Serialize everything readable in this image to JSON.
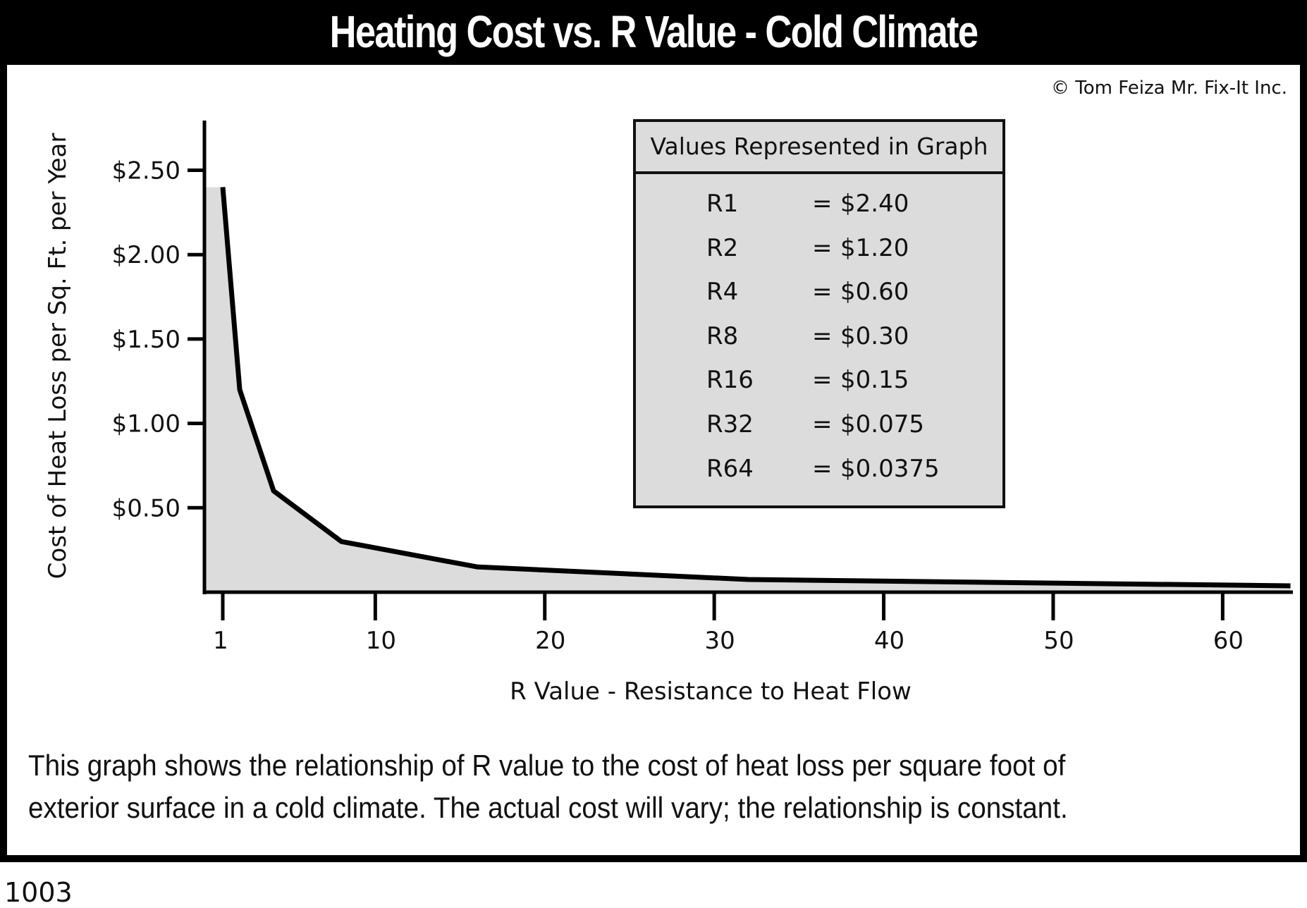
{
  "title": "Heating Cost vs. R Value - Cold Climate",
  "copyright": "© Tom Feiza Mr. Fix-It Inc.",
  "caption_lines": [
    "This graph shows the relationship of R value to the cost of heat loss per square foot of",
    "exterior surface in a cold climate.  The actual cost will vary; the relationship is constant."
  ],
  "figure_number": "1003",
  "legend": {
    "title": "Values Represented in Graph",
    "rows": [
      {
        "r": "R1",
        "eq": "=",
        "v": "$2.40"
      },
      {
        "r": "R2",
        "eq": "=",
        "v": "$1.20"
      },
      {
        "r": "R4",
        "eq": "=",
        "v": "$0.60"
      },
      {
        "r": "R8",
        "eq": "=",
        "v": "$0.30"
      },
      {
        "r": "R16",
        "eq": "=",
        "v": "$0.15"
      },
      {
        "r": "R32",
        "eq": "=",
        "v": "$0.075"
      },
      {
        "r": "R64",
        "eq": "=",
        "v": "$0.0375"
      }
    ]
  },
  "chart_data": {
    "type": "area",
    "title": "Heating Cost vs. R Value - Cold Climate",
    "xlabel": "R Value - Resistance to Heat Flow",
    "ylabel": "Cost of Heat Loss per Sq. Ft. per Year",
    "x": [
      1,
      2,
      4,
      8,
      16,
      32,
      64
    ],
    "y": [
      2.4,
      1.2,
      0.6,
      0.3,
      0.15,
      0.075,
      0.0375
    ],
    "xticks": [
      1,
      10,
      20,
      30,
      40,
      50,
      60
    ],
    "xtick_labels": [
      "1",
      "10",
      "20",
      "30",
      "40",
      "50",
      "60"
    ],
    "yticks": [
      0.5,
      1.0,
      1.5,
      2.0,
      2.5
    ],
    "ytick_labels": [
      "$0.50",
      "$1.00",
      "$1.50",
      "$2.00",
      "$2.50"
    ],
    "xlim": [
      0,
      64
    ],
    "ylim": [
      0,
      2.75
    ],
    "grid": false,
    "colors": {
      "line": "#000000",
      "fill": "#dcdcdc"
    }
  }
}
